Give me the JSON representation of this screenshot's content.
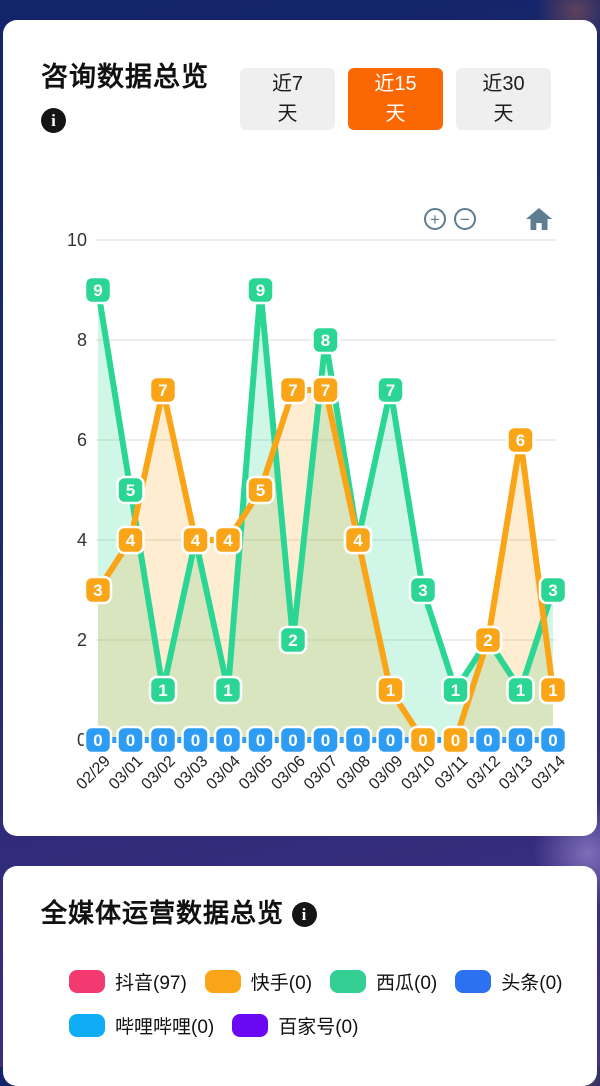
{
  "section1": {
    "title": "咨询数据总览",
    "info_icon": "i",
    "tabs": [
      {
        "label": "近7天",
        "active": false
      },
      {
        "label": "近15天",
        "active": true
      },
      {
        "label": "近30天",
        "active": false
      }
    ],
    "controls": {
      "zoom_in_glyph": "+",
      "zoom_out_glyph": "−"
    },
    "accent_color": "#fb6703"
  },
  "chart_data": {
    "type": "line",
    "x": [
      "02/29",
      "03/01",
      "03/02",
      "03/03",
      "03/04",
      "03/05",
      "03/06",
      "03/07",
      "03/08",
      "03/09",
      "03/10",
      "03/11",
      "03/12",
      "03/13",
      "03/14"
    ],
    "series": [
      {
        "name": "西瓜",
        "color": "#2bd694",
        "fill": "rgba(43,214,148,0.22)",
        "values": [
          9,
          5,
          1,
          4,
          1,
          9,
          2,
          8,
          4,
          7,
          3,
          1,
          2,
          1,
          3
        ]
      },
      {
        "name": "快手",
        "color": "#faa417",
        "fill": "rgba(250,164,23,0.20)",
        "values": [
          3,
          4,
          7,
          4,
          4,
          5,
          7,
          7,
          4,
          1,
          0,
          0,
          2,
          6,
          1
        ]
      },
      {
        "name": "头条",
        "color": "#2d9cf4",
        "fill": null,
        "values": [
          0,
          0,
          0,
          0,
          0,
          0,
          0,
          0,
          0,
          0,
          0,
          0,
          0,
          0,
          0
        ]
      }
    ],
    "ylim": [
      0,
      10
    ],
    "yticks": [
      0,
      2,
      4,
      6,
      8,
      10
    ],
    "grid": true,
    "point_labels": true,
    "legend_position": "none"
  },
  "section2": {
    "title": "全媒体运营数据总览",
    "info_icon": "i",
    "legend": [
      {
        "label": "抖音(97)",
        "color": "#f23a70"
      },
      {
        "label": "快手(0)",
        "color": "#faa417"
      },
      {
        "label": "西瓜(0)",
        "color": "#33ce92"
      },
      {
        "label": "头条(0)",
        "color": "#2c72f0"
      },
      {
        "label": "哔哩哔哩(0)",
        "color": "#0fadf6"
      },
      {
        "label": "百家号(0)",
        "color": "#6a08f4"
      }
    ]
  }
}
